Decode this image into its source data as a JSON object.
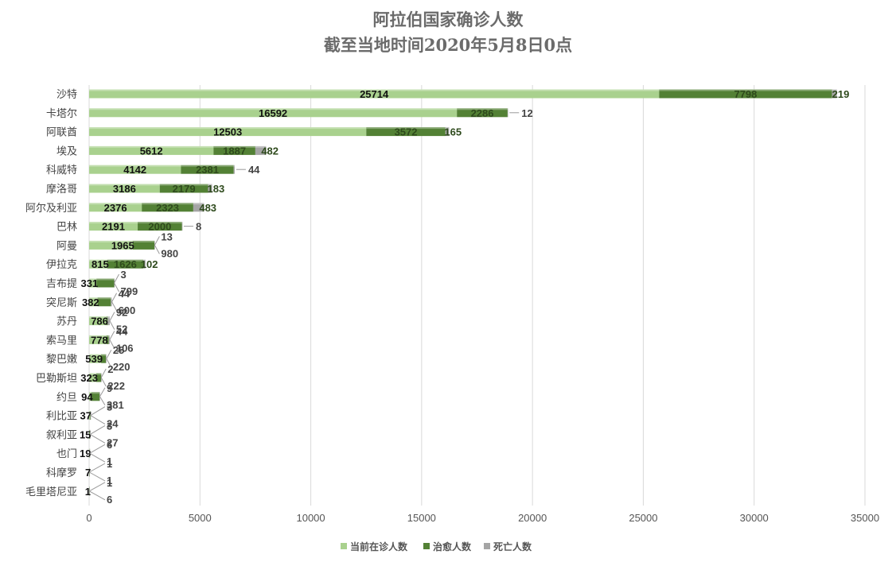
{
  "chart_data": {
    "type": "bar",
    "orientation": "horizontal",
    "stacked": true,
    "title": "阿拉伯国家确诊人数",
    "subtitle": "截至当地时间2020年5月8日0点",
    "categories": [
      "沙特",
      "卡塔尔",
      "阿联酋",
      "埃及",
      "科威特",
      "摩洛哥",
      "阿尔及利亚",
      "巴林",
      "阿曼",
      "伊拉克",
      "吉布提",
      "突尼斯",
      "苏丹",
      "索马里",
      "黎巴嫩",
      "巴勒斯坦",
      "约旦",
      "利比亚",
      "叙利亚",
      "也门",
      "科摩罗",
      "毛里塔尼亚"
    ],
    "series": [
      {
        "name": "当前在诊人数",
        "color": "#a9d18e",
        "values": [
          25714,
          16592,
          12503,
          5612,
          4142,
          3186,
          2376,
          2191,
          1965,
          815,
          331,
          382,
          786,
          778,
          539,
          323,
          94,
          37,
          15,
          19,
          7,
          1
        ]
      },
      {
        "name": "治愈人数",
        "color": "#538135",
        "values": [
          7798,
          2286,
          3572,
          1887,
          2381,
          2179,
          2323,
          2000,
          980,
          1626,
          799,
          600,
          52,
          106,
          220,
          222,
          381,
          24,
          27,
          1,
          1,
          6
        ]
      },
      {
        "name": "死亡人数",
        "color": "#a5a5a5",
        "values": [
          219,
          12,
          165,
          482,
          44,
          183,
          483,
          8,
          13,
          102,
          3,
          44,
          92,
          44,
          25,
          2,
          9,
          3,
          3,
          6,
          1,
          1
        ]
      }
    ],
    "xlim": [
      0,
      35000
    ],
    "xticks": [
      0,
      5000,
      10000,
      15000,
      20000,
      25000,
      30000,
      35000
    ],
    "xtick_labels": [
      "0",
      "5000",
      "10000",
      "15000",
      "20000",
      "25000",
      "30000",
      "35000"
    ],
    "grid": true,
    "legend_position": "bottom"
  }
}
